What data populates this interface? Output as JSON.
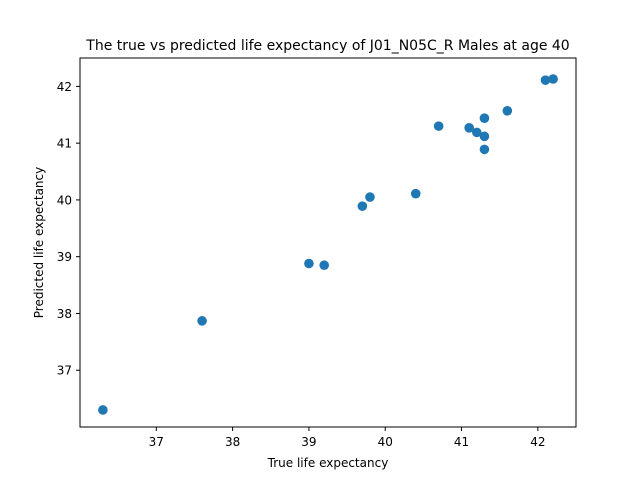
{
  "chart_data": {
    "type": "scatter",
    "title": "The true vs predicted life expectancy of J01_N05C_R Males at age 40",
    "xlabel": "True life expectancy",
    "ylabel": "Predicted life expectancy",
    "xlim": [
      36.0,
      42.5
    ],
    "ylim": [
      36.0,
      42.5
    ],
    "xticks": [
      "37",
      "38",
      "39",
      "40",
      "41",
      "42"
    ],
    "yticks": [
      "37",
      "38",
      "39",
      "40",
      "41",
      "42"
    ],
    "grid": false,
    "marker_color": "#1f77b4",
    "points": [
      {
        "x": 36.3,
        "y": 36.3
      },
      {
        "x": 37.6,
        "y": 37.87
      },
      {
        "x": 39.0,
        "y": 38.88
      },
      {
        "x": 39.2,
        "y": 38.85
      },
      {
        "x": 39.7,
        "y": 39.89
      },
      {
        "x": 39.8,
        "y": 40.05
      },
      {
        "x": 40.4,
        "y": 40.11
      },
      {
        "x": 40.7,
        "y": 41.3
      },
      {
        "x": 41.1,
        "y": 41.27
      },
      {
        "x": 41.2,
        "y": 41.19
      },
      {
        "x": 41.3,
        "y": 41.44
      },
      {
        "x": 41.3,
        "y": 41.12
      },
      {
        "x": 41.3,
        "y": 40.89
      },
      {
        "x": 41.6,
        "y": 41.57
      },
      {
        "x": 42.1,
        "y": 42.11
      },
      {
        "x": 42.2,
        "y": 42.13
      }
    ]
  }
}
